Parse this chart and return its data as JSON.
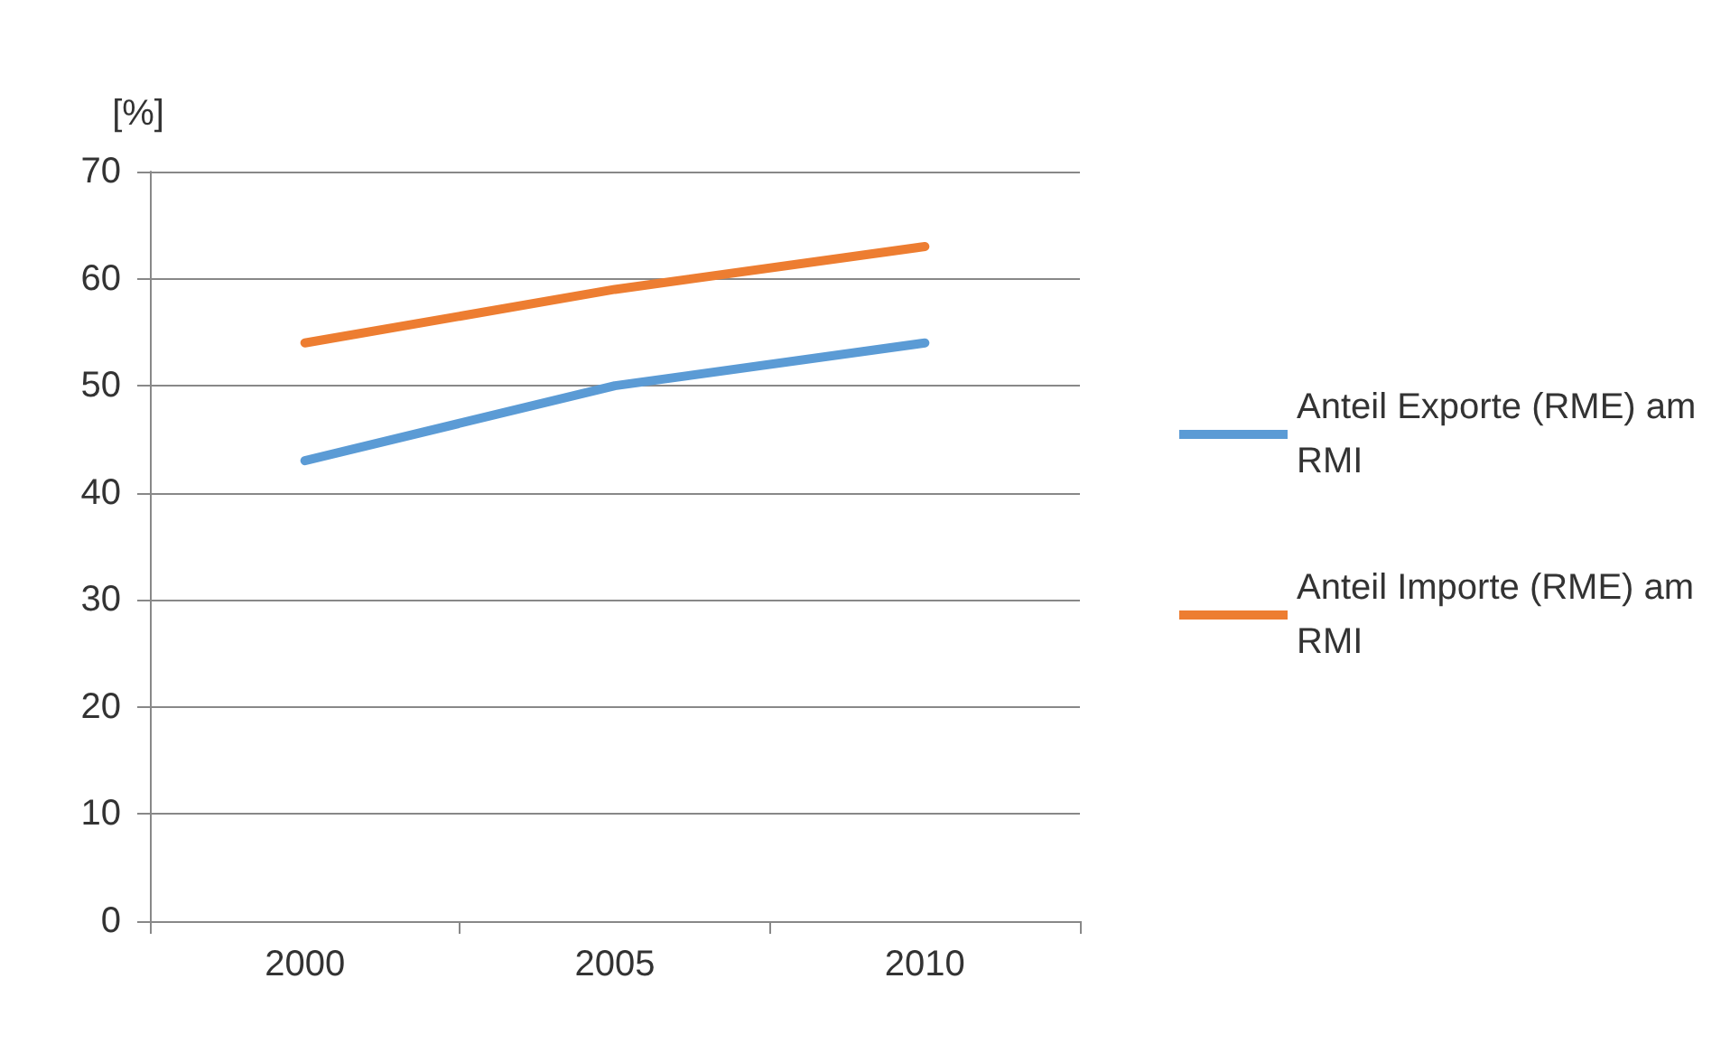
{
  "chart_data": {
    "type": "line",
    "ylabel": "[%]",
    "categories": [
      "2000",
      "2005",
      "2010"
    ],
    "series": [
      {
        "name": "Anteil Exporte (RME) am RMI",
        "color": "#5b9bd5",
        "values": [
          43,
          50,
          54
        ]
      },
      {
        "name": "Anteil Importe (RME) am RMI",
        "color": "#ed7d31",
        "values": [
          54,
          59,
          63
        ]
      }
    ],
    "ylim": [
      0,
      70
    ],
    "yticks": [
      0,
      10,
      20,
      30,
      40,
      50,
      60,
      70
    ],
    "grid": "y",
    "legend": "right",
    "marker": "none",
    "line_style": "solid"
  }
}
